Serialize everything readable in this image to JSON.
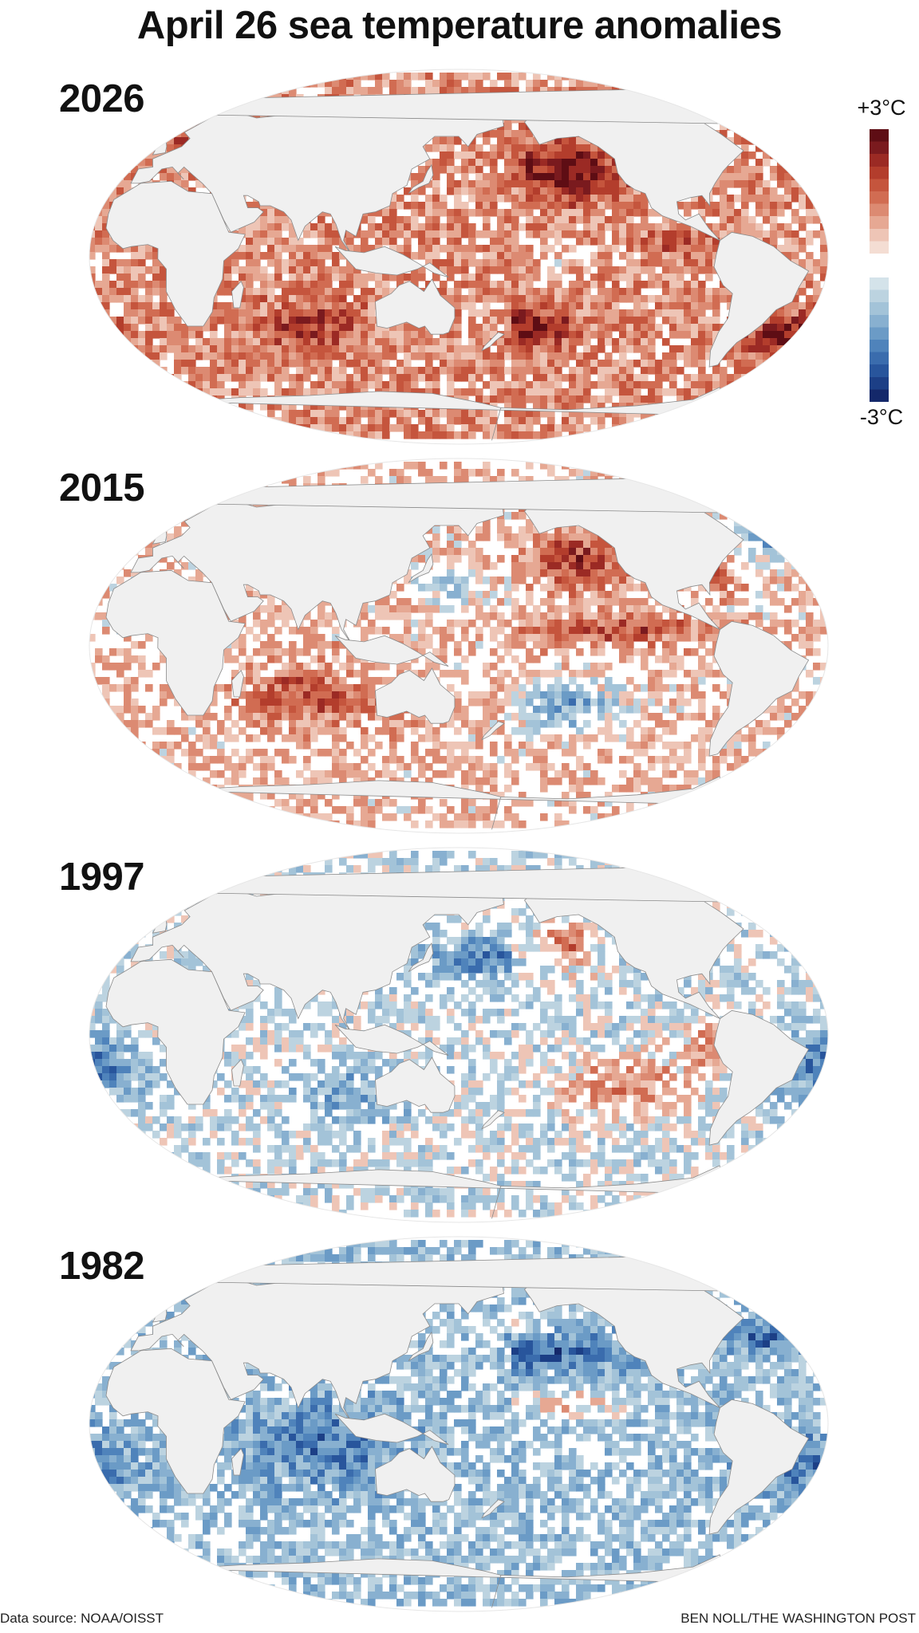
{
  "title": "April 26 sea temperature anomalies",
  "panels": [
    {
      "year": "2026",
      "pattern": "warm"
    },
    {
      "year": "2015",
      "pattern": "warm-mixed"
    },
    {
      "year": "1997",
      "pattern": "mixed"
    },
    {
      "year": "1982",
      "pattern": "cool"
    }
  ],
  "legend": {
    "max_label": "+3°C",
    "min_label": "-3°C",
    "max_value": 3,
    "min_value": -3,
    "warm_colors": [
      "#5e0d14",
      "#7a1a1e",
      "#9b2a24",
      "#b33d2c",
      "#c5553d",
      "#d16c52",
      "#dc8a72",
      "#e6a893",
      "#eec5b6",
      "#f4ddd3"
    ],
    "cool_colors": [
      "#d4e3ea",
      "#bcd3e0",
      "#a3c3d8",
      "#88b0d0",
      "#6b9bc6",
      "#4f83bb",
      "#3a6cad",
      "#28559c",
      "#1c3f86",
      "#14286a"
    ]
  },
  "source": "Data source: NOAA/OISST",
  "credit": "BEN NOLL/THE WASHINGTON POST",
  "colors": {
    "land": "#f0f0f0",
    "ocean_neutral": "#ffffff",
    "coast": "#8a8a8a"
  }
}
